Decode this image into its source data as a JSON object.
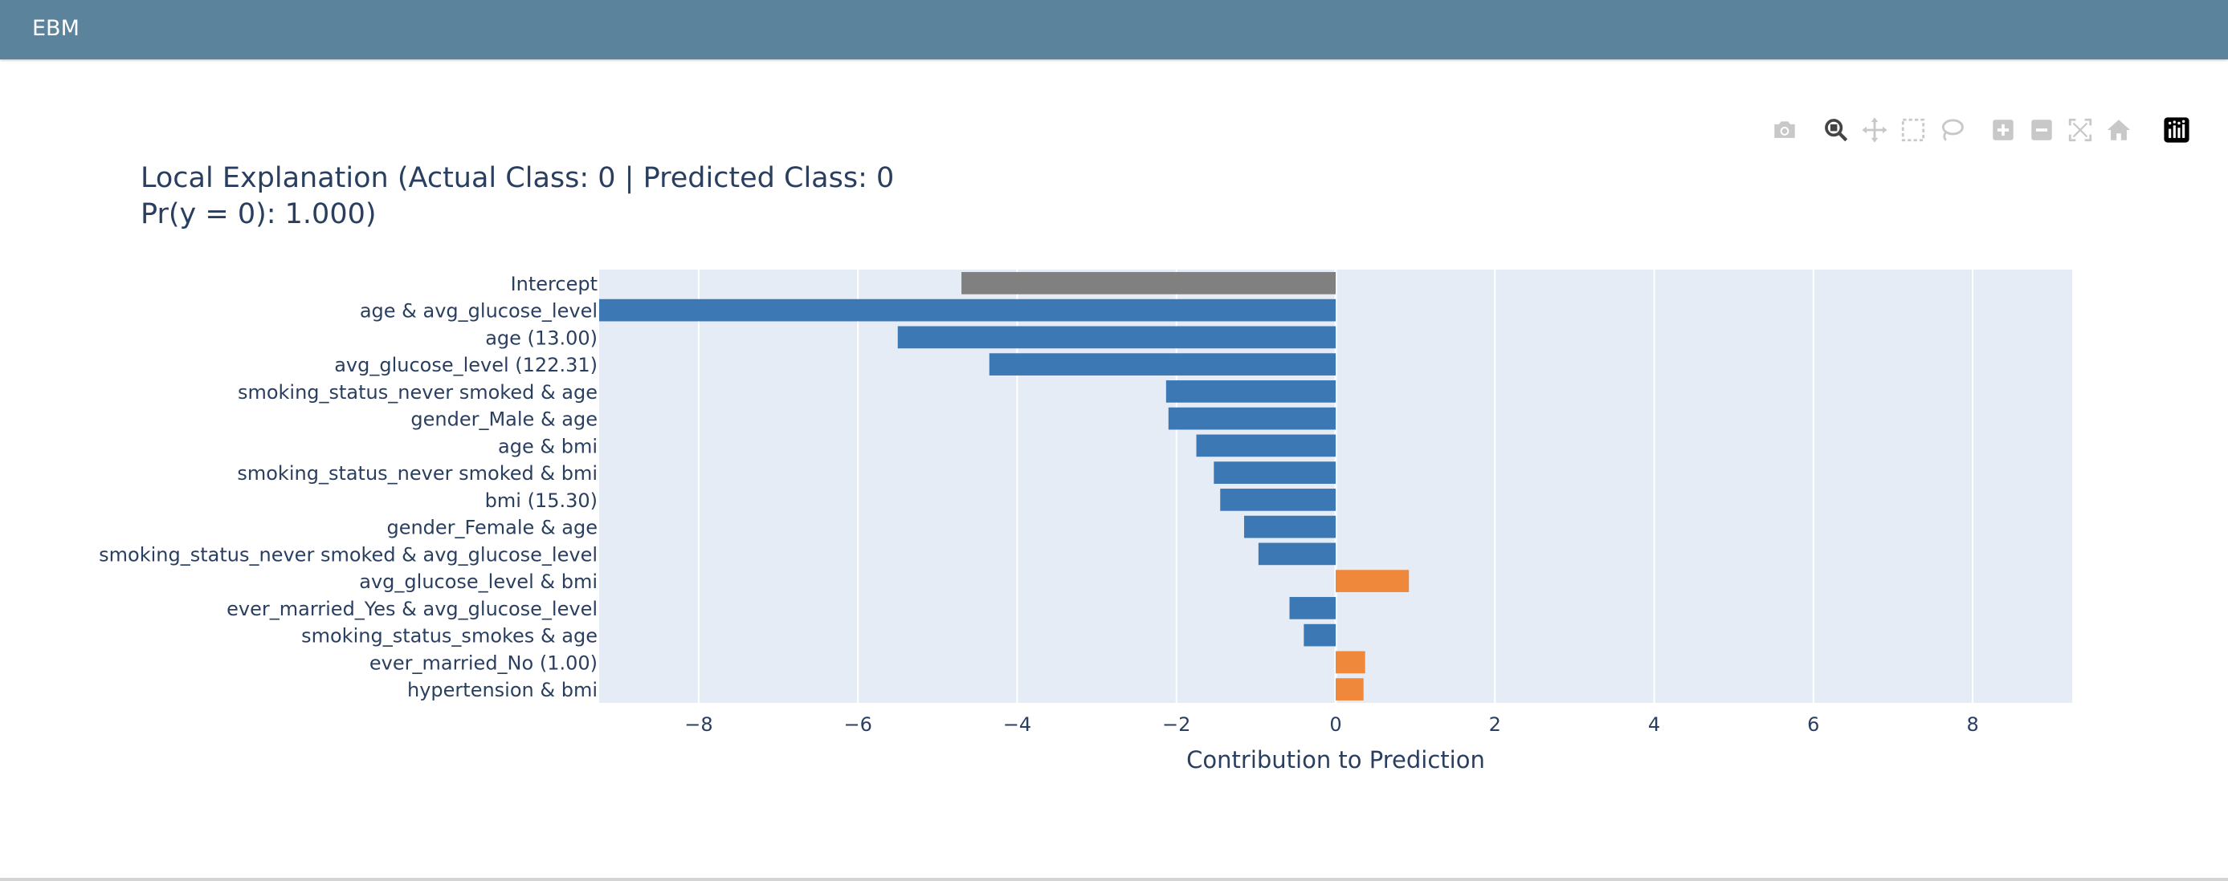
{
  "app": {
    "title": "EBM"
  },
  "modebar": {
    "buttons": [
      {
        "name": "camera-icon",
        "active": false
      },
      {
        "name": "zoom-icon",
        "active": true
      },
      {
        "name": "pan-icon",
        "active": false
      },
      {
        "name": "box-select-icon",
        "active": false
      },
      {
        "name": "lasso-select-icon",
        "active": false
      },
      {
        "name": "zoom-in-icon",
        "active": false
      },
      {
        "name": "zoom-out-icon",
        "active": false
      },
      {
        "name": "autoscale-icon",
        "active": false
      },
      {
        "name": "reset-axes-icon",
        "active": false
      },
      {
        "name": "plotly-logo-icon",
        "active": false
      }
    ]
  },
  "chart_data": {
    "type": "bar",
    "orientation": "horizontal",
    "title_line1": "Local Explanation (Actual Class: 0 | Predicted Class: 0",
    "title_line2": "Pr(y = 0): 1.000)",
    "xlabel": "Contribution to Prediction",
    "ylabel": "",
    "xlim": [
      -9.25,
      9.25
    ],
    "xticks": [
      -8,
      -6,
      -4,
      -2,
      0,
      2,
      4,
      6,
      8
    ],
    "xtick_labels": [
      "−8",
      "−6",
      "−4",
      "−2",
      "0",
      "2",
      "4",
      "6",
      "8"
    ],
    "grid": true,
    "legend": "none",
    "colors": {
      "intercept": "#808080",
      "negative": "#3c78b4",
      "positive": "#f0883c",
      "plot_bg": "#e5ecf6",
      "gridline": "#ffffff",
      "text": "#2a3f5f"
    },
    "categories": [
      "Intercept",
      "age & avg_glucose_level",
      "age (13.00)",
      "avg_glucose_level (122.31)",
      "smoking_status_never smoked & age",
      "gender_Male & age",
      "age & bmi",
      "smoking_status_never smoked & bmi",
      "bmi (15.30)",
      "gender_Female & age",
      "smoking_status_never smoked & avg_glucose_level",
      "avg_glucose_level & bmi",
      "ever_married_Yes & avg_glucose_level",
      "smoking_status_smokes & age",
      "ever_married_No (1.00)",
      "hypertension & bmi"
    ],
    "values": [
      -4.7,
      -9.25,
      -5.5,
      -4.35,
      -2.13,
      -2.1,
      -1.75,
      -1.53,
      -1.45,
      -1.15,
      -0.97,
      0.92,
      -0.58,
      -0.4,
      0.37,
      0.35
    ]
  }
}
